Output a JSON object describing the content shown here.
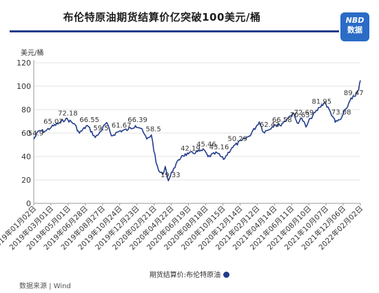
{
  "header": {
    "title": "布伦特原油期货结算价亿突破100美元/桶",
    "logo_line1": "NBD",
    "logo_line2": "数据"
  },
  "source": "数据来源 | Wind",
  "chart_data": {
    "type": "line",
    "title": "布伦特原油期货结算价亿突破100美元/桶",
    "ylabel": "美元/桶",
    "xlabel": "",
    "ylim": [
      0,
      120
    ],
    "yticks": [
      0,
      20,
      40,
      60,
      80,
      100,
      120
    ],
    "x_ticks": [
      "2019年01月02日",
      "2019年03月01日",
      "2019年05月01日",
      "2019年06月28日",
      "2019年08月27日",
      "2019年10月24日",
      "2019年12月23日",
      "2020年02月21日",
      "2020年04月22日",
      "2020年06月19日",
      "2020年08月18日",
      "2020年10月15日",
      "2020年12月14日",
      "2021年02月12日",
      "2021年04月14日",
      "2021年06月11日",
      "2021年08月10日",
      "2021年10月07日",
      "2021年12月06日",
      "2022年02月02日"
    ],
    "grid": true,
    "legend_position": "bottom",
    "series": [
      {
        "name": "期货结算价:布伦特原油",
        "color": "#233c8c",
        "points": [
          {
            "x": "2019-01-02",
            "y": 54.9
          },
          {
            "x": "2019-01-20",
            "y": 62.0
          },
          {
            "x": "2019-02-10",
            "y": 61.5
          },
          {
            "x": "2019-03-05",
            "y": 65.07
          },
          {
            "x": "2019-04-01",
            "y": 68.5
          },
          {
            "x": "2019-04-25",
            "y": 72.18
          },
          {
            "x": "2019-05-25",
            "y": 68.0
          },
          {
            "x": "2019-06-12",
            "y": 59.9
          },
          {
            "x": "2019-07-10",
            "y": 66.55
          },
          {
            "x": "2019-08-07",
            "y": 56.2
          },
          {
            "x": "2019-08-20",
            "y": 59.5
          },
          {
            "x": "2019-09-16",
            "y": 69.0
          },
          {
            "x": "2019-10-03",
            "y": 57.7
          },
          {
            "x": "2019-10-31",
            "y": 61.67
          },
          {
            "x": "2019-12-01",
            "y": 63.0
          },
          {
            "x": "2019-12-27",
            "y": 66.39
          },
          {
            "x": "2020-01-15",
            "y": 64.0
          },
          {
            "x": "2020-02-05",
            "y": 54.9
          },
          {
            "x": "2020-02-21",
            "y": 58.5
          },
          {
            "x": "2020-03-09",
            "y": 34.4
          },
          {
            "x": "2020-03-20",
            "y": 26.98
          },
          {
            "x": "2020-04-01",
            "y": 24.7
          },
          {
            "x": "2020-04-10",
            "y": 31.5
          },
          {
            "x": "2020-04-21",
            "y": 19.33
          },
          {
            "x": "2020-05-10",
            "y": 30.0
          },
          {
            "x": "2020-06-08",
            "y": 40.8
          },
          {
            "x": "2020-07-01",
            "y": 42.19
          },
          {
            "x": "2020-08-10",
            "y": 44.5
          },
          {
            "x": "2020-08-26",
            "y": 45.46
          },
          {
            "x": "2020-09-08",
            "y": 39.8
          },
          {
            "x": "2020-10-10",
            "y": 43.16
          },
          {
            "x": "2020-11-02",
            "y": 37.5
          },
          {
            "x": "2020-12-01",
            "y": 47.5
          },
          {
            "x": "2021-01-05",
            "y": 53.6
          },
          {
            "x": "2021-02-01",
            "y": 57.5
          },
          {
            "x": "2021-03-08",
            "y": 69.5
          },
          {
            "x": "2021-03-23",
            "y": 60.8
          },
          {
            "x": "2021-04-06",
            "y": 62.43
          },
          {
            "x": "2021-05-01",
            "y": 67.2
          },
          {
            "x": "2021-05-20",
            "y": 66.58
          },
          {
            "x": "2021-06-20",
            "y": 73.5
          },
          {
            "x": "2021-07-05",
            "y": 77.2
          },
          {
            "x": "2021-07-20",
            "y": 68.6
          },
          {
            "x": "2021-08-05",
            "y": 72.69
          },
          {
            "x": "2021-08-20",
            "y": 65.2
          },
          {
            "x": "2021-09-05",
            "y": 72.6
          },
          {
            "x": "2021-10-07",
            "y": 81.95
          },
          {
            "x": "2021-10-25",
            "y": 86.4
          },
          {
            "x": "2021-11-26",
            "y": 72.7
          },
          {
            "x": "2021-12-01",
            "y": 69.2
          },
          {
            "x": "2021-12-20",
            "y": 71.5
          },
          {
            "x": "2022-01-10",
            "y": 81.0
          },
          {
            "x": "2022-01-26",
            "y": 89.96
          },
          {
            "x": "2022-02-10",
            "y": 91.4
          },
          {
            "x": "2022-02-22",
            "y": 97.0
          },
          {
            "x": "2022-02-28",
            "y": 104.97
          }
        ]
      }
    ],
    "annotations": [
      {
        "text": "54.9",
        "x": "2019-01-02",
        "y": 54.9
      },
      {
        "text": "65.07",
        "x": "2019-03-05",
        "y": 65.07
      },
      {
        "text": "72.18",
        "x": "2019-04-25",
        "y": 72.18
      },
      {
        "text": "66.55",
        "x": "2019-07-10",
        "y": 66.55
      },
      {
        "text": "59.5",
        "x": "2019-08-20",
        "y": 59.5
      },
      {
        "text": "61.67",
        "x": "2019-10-31",
        "y": 61.67
      },
      {
        "text": "66.39",
        "x": "2019-12-27",
        "y": 66.39
      },
      {
        "text": "58.5",
        "x": "2020-02-21",
        "y": 58.5
      },
      {
        "text": "19.33",
        "x": "2020-04-21",
        "y": 19.33
      },
      {
        "text": "42.19",
        "x": "2020-07-01",
        "y": 42.19
      },
      {
        "text": "45.46",
        "x": "2020-08-26",
        "y": 45.46
      },
      {
        "text": "43.16",
        "x": "2020-10-10",
        "y": 43.16
      },
      {
        "text": "50.29",
        "x": "2020-12-14",
        "y": 50.29
      },
      {
        "text": "62.43",
        "x": "2021-04-06",
        "y": 62.43
      },
      {
        "text": "66.58",
        "x": "2021-05-20",
        "y": 66.58
      },
      {
        "text": "70.63",
        "x": "2021-07-22",
        "y": 70.63
      },
      {
        "text": "72.69",
        "x": "2021-08-05",
        "y": 72.69
      },
      {
        "text": "81.95",
        "x": "2021-10-07",
        "y": 81.95
      },
      {
        "text": "73.08",
        "x": "2021-12-15",
        "y": 73.08
      },
      {
        "text": "89.47",
        "x": "2022-01-28",
        "y": 89.47
      }
    ]
  }
}
